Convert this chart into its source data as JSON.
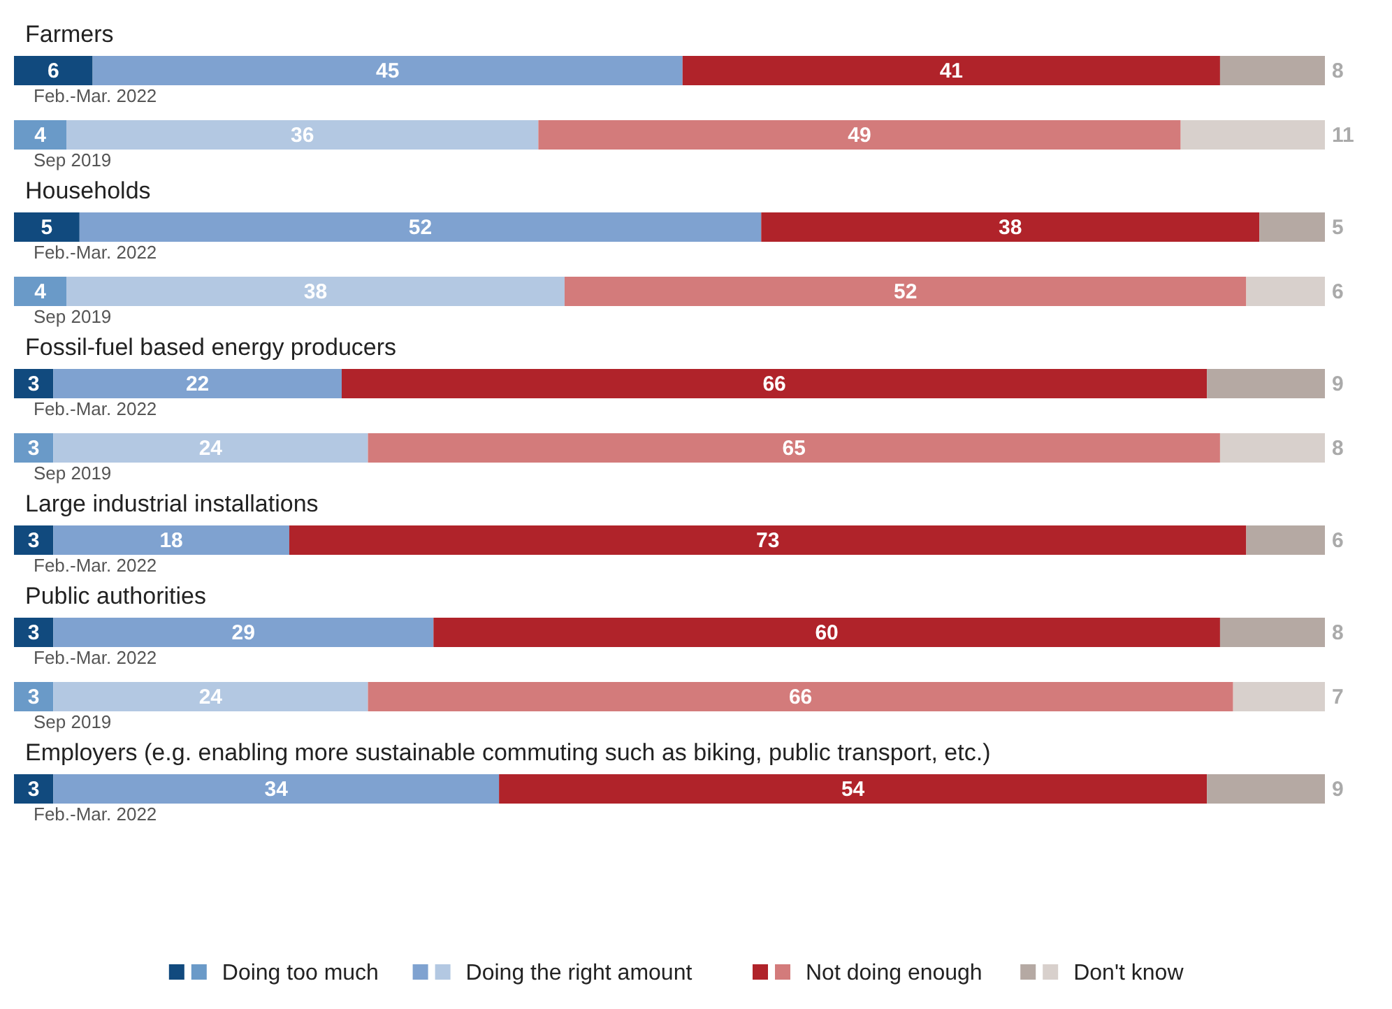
{
  "chart_data": {
    "type": "bar",
    "orientation": "horizontal",
    "stacked": true,
    "data_labels": true,
    "legend": "bottom",
    "categories": [
      "Feb.-Mar. 2022",
      "Sep 2019",
      "Feb.-Mar. 2022",
      "Sep 2019",
      "Feb.-Mar. 2022",
      "Sep 2019",
      "Feb.-Mar. 2022",
      "Feb.-Mar. 2022",
      "Sep 2019",
      "Feb.-Mar. 2022"
    ],
    "annotations": [
      "Farmers",
      "Households",
      "Fossil-fuel based energy producers",
      "Large industrial installations",
      "Public authorities",
      "Employers (e.g. enabling more sustainable commuting such as biking, public transport, etc.)"
    ],
    "series": [
      {
        "name": "Doing too much",
        "color": "#114a7e",
        "colors": [
          "#114a7e",
          "#6a9ac8",
          "#114a7e",
          "#6a9ac8",
          "#114a7e",
          "#6a9ac8",
          "#114a7e",
          "#114a7e",
          "#6a9ac8",
          "#114a7e"
        ],
        "values": [
          6,
          4,
          5,
          4,
          3,
          3,
          3,
          3,
          3,
          3
        ]
      },
      {
        "name": "Doing the right amount",
        "color": "#7fa2d0",
        "colors": [
          "#7fa2d0",
          "#b3c8e2",
          "#7fa2d0",
          "#b3c8e2",
          "#7fa2d0",
          "#b3c8e2",
          "#7fa2d0",
          "#7fa2d0",
          "#b3c8e2",
          "#7fa2d0"
        ],
        "values": [
          45,
          36,
          52,
          38,
          22,
          24,
          18,
          29,
          24,
          34
        ]
      },
      {
        "name": "Not doing enough",
        "color": "#b0232a",
        "colors": [
          "#b0232a",
          "#d37b7b",
          "#b0232a",
          "#d37b7b",
          "#b0232a",
          "#d37b7b",
          "#b0232a",
          "#b0232a",
          "#d37b7b",
          "#b0232a"
        ],
        "values": [
          41,
          49,
          38,
          52,
          66,
          65,
          73,
          60,
          66,
          54
        ]
      },
      {
        "name": "Don't know",
        "color": "#b5a9a3",
        "colors": [
          "#b5a9a3",
          "#d8d0cc",
          "#b5a9a3",
          "#d8d0cc",
          "#b5a9a3",
          "#d8d0cc",
          "#b5a9a3",
          "#b5a9a3",
          "#d8d0cc",
          "#b5a9a3"
        ],
        "values": [
          8,
          11,
          5,
          6,
          9,
          8,
          6,
          8,
          7,
          9
        ]
      }
    ]
  }
}
